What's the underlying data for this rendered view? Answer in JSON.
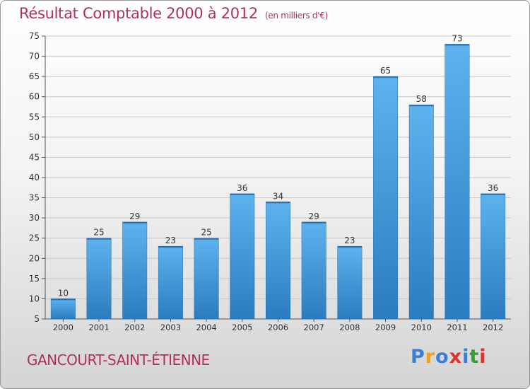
{
  "header": {
    "title": "Résultat Comptable 2000 à 2012",
    "subtitle": "(en milliers d'€)"
  },
  "footer": {
    "commune": "GANCOURT-SAINT-ÉTIENNE",
    "logo_letters": [
      "P",
      "r",
      "o",
      "x",
      "i",
      "t",
      "i"
    ],
    "logo_colors": [
      "#3a7fd5",
      "#f0a020",
      "#3a7fd5",
      "#e03030",
      "#3a7fd5",
      "#30a030",
      "#e03030"
    ]
  },
  "chart_data": {
    "type": "bar",
    "categories": [
      "2000",
      "2001",
      "2002",
      "2003",
      "2004",
      "2005",
      "2006",
      "2007",
      "2008",
      "2009",
      "2010",
      "2011",
      "2012"
    ],
    "values": [
      10,
      25,
      29,
      23,
      25,
      36,
      34,
      29,
      23,
      65,
      58,
      73,
      36
    ],
    "title": "Résultat Comptable 2000 à 2012",
    "subtitle": "(en milliers d'€)",
    "xlabel": "",
    "ylabel": "",
    "ylim": [
      5,
      75
    ],
    "yticks": [
      5,
      10,
      15,
      20,
      25,
      30,
      35,
      40,
      45,
      50,
      55,
      60,
      65,
      70,
      75
    ],
    "grid": true,
    "bar_color": "#4a9fe0"
  }
}
